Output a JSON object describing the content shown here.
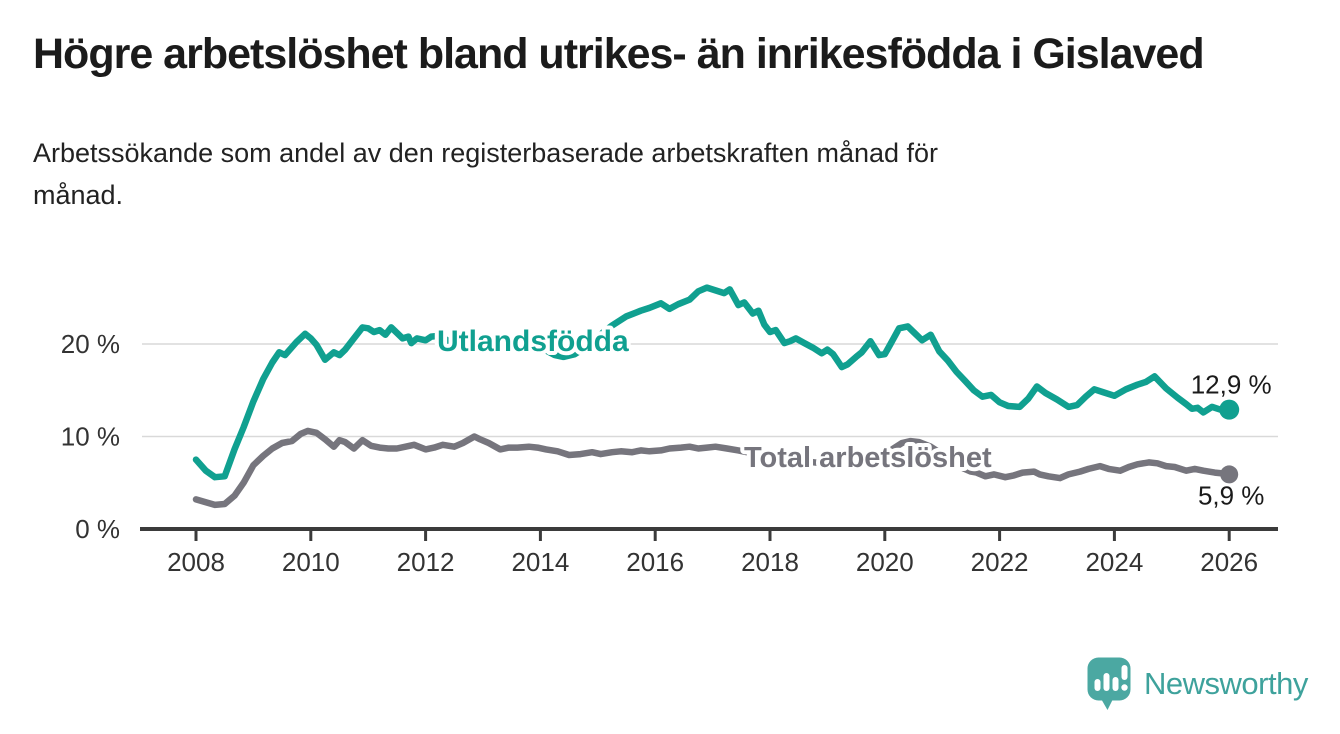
{
  "header": {
    "title": "Högre arbetslöshet bland utrikes- än inrikesfödda i Gislaved",
    "subtitle_line1": "Arbetssökande som andel av den registerbaserade arbetskraften månad för",
    "subtitle_line2": "månad."
  },
  "footer": {
    "brand": "Newsworthy"
  },
  "chart_data": {
    "type": "line",
    "title": "Högre arbetslöshet bland utrikes- än inrikesfödda i Gislaved",
    "subtitle": "Arbetssökande som andel av den registerbaserade arbetskraften månad för månad.",
    "unit": "%",
    "x_axis": {
      "ticks": [
        2008,
        2010,
        2012,
        2014,
        2016,
        2018,
        2020,
        2022,
        2024,
        2026
      ],
      "range": [
        2007.3,
        2026.9
      ],
      "gridlines": false
    },
    "y_axis": {
      "ticks": [
        {
          "value": 0,
          "label": "0 %"
        },
        {
          "value": 10,
          "label": "10 %"
        },
        {
          "value": 20,
          "label": "20 %"
        }
      ],
      "range": [
        0,
        27.5
      ],
      "gridlines": true,
      "gridline_color": "#d9d9d9"
    },
    "axis_color": "#3b3b3b",
    "legend_position": "inline-labels",
    "series": [
      {
        "name": "Utlandsfödda",
        "color": "#10A090",
        "end_value_label": "12,9 %",
        "points": [
          [
            2008.0,
            7.5
          ],
          [
            2008.17,
            6.3
          ],
          [
            2008.33,
            5.6
          ],
          [
            2008.5,
            5.7
          ],
          [
            2008.67,
            8.6
          ],
          [
            2008.83,
            11.0
          ],
          [
            2009.0,
            13.8
          ],
          [
            2009.17,
            16.2
          ],
          [
            2009.33,
            18.0
          ],
          [
            2009.45,
            19.1
          ],
          [
            2009.55,
            18.8
          ],
          [
            2009.75,
            20.2
          ],
          [
            2009.9,
            21.1
          ],
          [
            2010.0,
            20.6
          ],
          [
            2010.1,
            19.9
          ],
          [
            2010.25,
            18.3
          ],
          [
            2010.4,
            19.1
          ],
          [
            2010.5,
            18.8
          ],
          [
            2010.6,
            19.4
          ],
          [
            2010.75,
            20.6
          ],
          [
            2010.9,
            21.8
          ],
          [
            2011.0,
            21.7
          ],
          [
            2011.1,
            21.3
          ],
          [
            2011.2,
            21.5
          ],
          [
            2011.3,
            21.0
          ],
          [
            2011.4,
            21.8
          ],
          [
            2011.5,
            21.2
          ],
          [
            2011.6,
            20.6
          ],
          [
            2011.7,
            20.8
          ],
          [
            2011.75,
            20.1
          ],
          [
            2011.85,
            20.6
          ],
          [
            2012.0,
            20.4
          ],
          [
            2012.1,
            20.8
          ],
          [
            2012.25,
            20.9
          ],
          [
            2012.4,
            20.3
          ],
          [
            2012.6,
            20.6
          ],
          [
            2012.75,
            20.4
          ],
          [
            2012.9,
            20.7
          ],
          [
            2013.1,
            20.5
          ],
          [
            2013.25,
            20.2
          ],
          [
            2013.4,
            20.0
          ],
          [
            2013.6,
            20.3
          ],
          [
            2013.75,
            20.0
          ],
          [
            2013.9,
            19.8
          ],
          [
            2014.1,
            19.3
          ],
          [
            2014.25,
            18.8
          ],
          [
            2014.4,
            18.6
          ],
          [
            2014.6,
            18.9
          ],
          [
            2014.75,
            19.5
          ],
          [
            2014.9,
            20.1
          ],
          [
            2015.1,
            21.3
          ],
          [
            2015.25,
            22.0
          ],
          [
            2015.5,
            23.0
          ],
          [
            2015.75,
            23.6
          ],
          [
            2015.9,
            23.9
          ],
          [
            2016.1,
            24.4
          ],
          [
            2016.25,
            23.8
          ],
          [
            2016.4,
            24.3
          ],
          [
            2016.6,
            24.8
          ],
          [
            2016.75,
            25.7
          ],
          [
            2016.9,
            26.1
          ],
          [
            2017.05,
            25.8
          ],
          [
            2017.2,
            25.5
          ],
          [
            2017.3,
            25.9
          ],
          [
            2017.45,
            24.2
          ],
          [
            2017.55,
            24.5
          ],
          [
            2017.7,
            23.3
          ],
          [
            2017.8,
            23.6
          ],
          [
            2017.9,
            22.1
          ],
          [
            2018.0,
            21.3
          ],
          [
            2018.1,
            21.5
          ],
          [
            2018.25,
            20.1
          ],
          [
            2018.35,
            20.3
          ],
          [
            2018.45,
            20.6
          ],
          [
            2018.6,
            20.1
          ],
          [
            2018.75,
            19.6
          ],
          [
            2018.9,
            19.0
          ],
          [
            2019.0,
            19.4
          ],
          [
            2019.1,
            18.9
          ],
          [
            2019.25,
            17.5
          ],
          [
            2019.35,
            17.8
          ],
          [
            2019.5,
            18.6
          ],
          [
            2019.6,
            19.1
          ],
          [
            2019.75,
            20.3
          ],
          [
            2019.9,
            18.8
          ],
          [
            2020.0,
            18.9
          ],
          [
            2020.1,
            20.0
          ],
          [
            2020.25,
            21.7
          ],
          [
            2020.4,
            21.9
          ],
          [
            2020.5,
            21.3
          ],
          [
            2020.65,
            20.4
          ],
          [
            2020.8,
            21.0
          ],
          [
            2020.95,
            19.2
          ],
          [
            2021.1,
            18.2
          ],
          [
            2021.25,
            17.0
          ],
          [
            2021.4,
            16.0
          ],
          [
            2021.55,
            15.0
          ],
          [
            2021.7,
            14.3
          ],
          [
            2021.85,
            14.5
          ],
          [
            2022.0,
            13.7
          ],
          [
            2022.15,
            13.3
          ],
          [
            2022.35,
            13.2
          ],
          [
            2022.5,
            14.1
          ],
          [
            2022.65,
            15.4
          ],
          [
            2022.8,
            14.7
          ],
          [
            2023.0,
            14.0
          ],
          [
            2023.2,
            13.2
          ],
          [
            2023.35,
            13.4
          ],
          [
            2023.5,
            14.3
          ],
          [
            2023.65,
            15.1
          ],
          [
            2023.8,
            14.8
          ],
          [
            2024.0,
            14.4
          ],
          [
            2024.2,
            15.1
          ],
          [
            2024.4,
            15.6
          ],
          [
            2024.55,
            15.9
          ],
          [
            2024.7,
            16.5
          ],
          [
            2024.9,
            15.2
          ],
          [
            2025.1,
            14.2
          ],
          [
            2025.25,
            13.5
          ],
          [
            2025.35,
            13.0
          ],
          [
            2025.45,
            13.1
          ],
          [
            2025.55,
            12.6
          ],
          [
            2025.7,
            13.2
          ],
          [
            2025.85,
            12.9
          ],
          [
            2026.0,
            12.9
          ]
        ]
      },
      {
        "name": "Total arbetslöshet",
        "color": "#76757D",
        "end_value_label": "5,9 %",
        "points": [
          [
            2008.0,
            3.2
          ],
          [
            2008.17,
            2.9
          ],
          [
            2008.33,
            2.6
          ],
          [
            2008.5,
            2.7
          ],
          [
            2008.67,
            3.6
          ],
          [
            2008.83,
            5.0
          ],
          [
            2009.0,
            6.9
          ],
          [
            2009.17,
            7.9
          ],
          [
            2009.33,
            8.7
          ],
          [
            2009.5,
            9.3
          ],
          [
            2009.67,
            9.5
          ],
          [
            2009.83,
            10.3
          ],
          [
            2009.95,
            10.6
          ],
          [
            2010.1,
            10.4
          ],
          [
            2010.25,
            9.7
          ],
          [
            2010.4,
            8.9
          ],
          [
            2010.5,
            9.6
          ],
          [
            2010.6,
            9.4
          ],
          [
            2010.75,
            8.7
          ],
          [
            2010.9,
            9.6
          ],
          [
            2011.05,
            9.0
          ],
          [
            2011.2,
            8.8
          ],
          [
            2011.35,
            8.7
          ],
          [
            2011.5,
            8.7
          ],
          [
            2011.65,
            8.9
          ],
          [
            2011.8,
            9.1
          ],
          [
            2012.0,
            8.6
          ],
          [
            2012.15,
            8.8
          ],
          [
            2012.3,
            9.1
          ],
          [
            2012.5,
            8.9
          ],
          [
            2012.65,
            9.3
          ],
          [
            2012.85,
            10.0
          ],
          [
            2012.95,
            9.7
          ],
          [
            2013.1,
            9.3
          ],
          [
            2013.3,
            8.6
          ],
          [
            2013.45,
            8.8
          ],
          [
            2013.6,
            8.8
          ],
          [
            2013.8,
            8.9
          ],
          [
            2013.95,
            8.8
          ],
          [
            2014.1,
            8.6
          ],
          [
            2014.3,
            8.4
          ],
          [
            2014.5,
            8.0
          ],
          [
            2014.7,
            8.1
          ],
          [
            2014.9,
            8.3
          ],
          [
            2015.05,
            8.1
          ],
          [
            2015.25,
            8.3
          ],
          [
            2015.4,
            8.4
          ],
          [
            2015.6,
            8.3
          ],
          [
            2015.75,
            8.5
          ],
          [
            2015.9,
            8.4
          ],
          [
            2016.1,
            8.5
          ],
          [
            2016.25,
            8.7
          ],
          [
            2016.45,
            8.8
          ],
          [
            2016.6,
            8.9
          ],
          [
            2016.75,
            8.7
          ],
          [
            2016.9,
            8.8
          ],
          [
            2017.05,
            8.9
          ],
          [
            2017.25,
            8.7
          ],
          [
            2017.45,
            8.5
          ],
          [
            2017.6,
            8.3
          ],
          [
            2017.75,
            8.0
          ],
          [
            2017.95,
            7.8
          ],
          [
            2018.15,
            7.6
          ],
          [
            2018.4,
            7.4
          ],
          [
            2018.65,
            7.3
          ],
          [
            2018.9,
            7.1
          ],
          [
            2019.15,
            7.0
          ],
          [
            2019.4,
            7.1
          ],
          [
            2019.65,
            7.3
          ],
          [
            2019.9,
            7.6
          ],
          [
            2020.1,
            8.5
          ],
          [
            2020.3,
            9.3
          ],
          [
            2020.45,
            9.5
          ],
          [
            2020.6,
            9.4
          ],
          [
            2020.8,
            8.9
          ],
          [
            2021.0,
            8.1
          ],
          [
            2021.2,
            7.3
          ],
          [
            2021.35,
            6.6
          ],
          [
            2021.5,
            6.2
          ],
          [
            2021.6,
            6.1
          ],
          [
            2021.75,
            5.7
          ],
          [
            2021.9,
            5.9
          ],
          [
            2022.1,
            5.6
          ],
          [
            2022.25,
            5.8
          ],
          [
            2022.4,
            6.1
          ],
          [
            2022.6,
            6.2
          ],
          [
            2022.7,
            5.9
          ],
          [
            2022.85,
            5.7
          ],
          [
            2023.05,
            5.5
          ],
          [
            2023.2,
            5.9
          ],
          [
            2023.4,
            6.2
          ],
          [
            2023.55,
            6.5
          ],
          [
            2023.75,
            6.8
          ],
          [
            2023.9,
            6.5
          ],
          [
            2024.1,
            6.3
          ],
          [
            2024.25,
            6.7
          ],
          [
            2024.4,
            7.0
          ],
          [
            2024.6,
            7.2
          ],
          [
            2024.75,
            7.1
          ],
          [
            2024.9,
            6.8
          ],
          [
            2025.05,
            6.7
          ],
          [
            2025.25,
            6.3
          ],
          [
            2025.4,
            6.5
          ],
          [
            2025.55,
            6.3
          ],
          [
            2025.75,
            6.1
          ],
          [
            2025.9,
            6.0
          ],
          [
            2026.0,
            5.9
          ]
        ]
      }
    ]
  }
}
